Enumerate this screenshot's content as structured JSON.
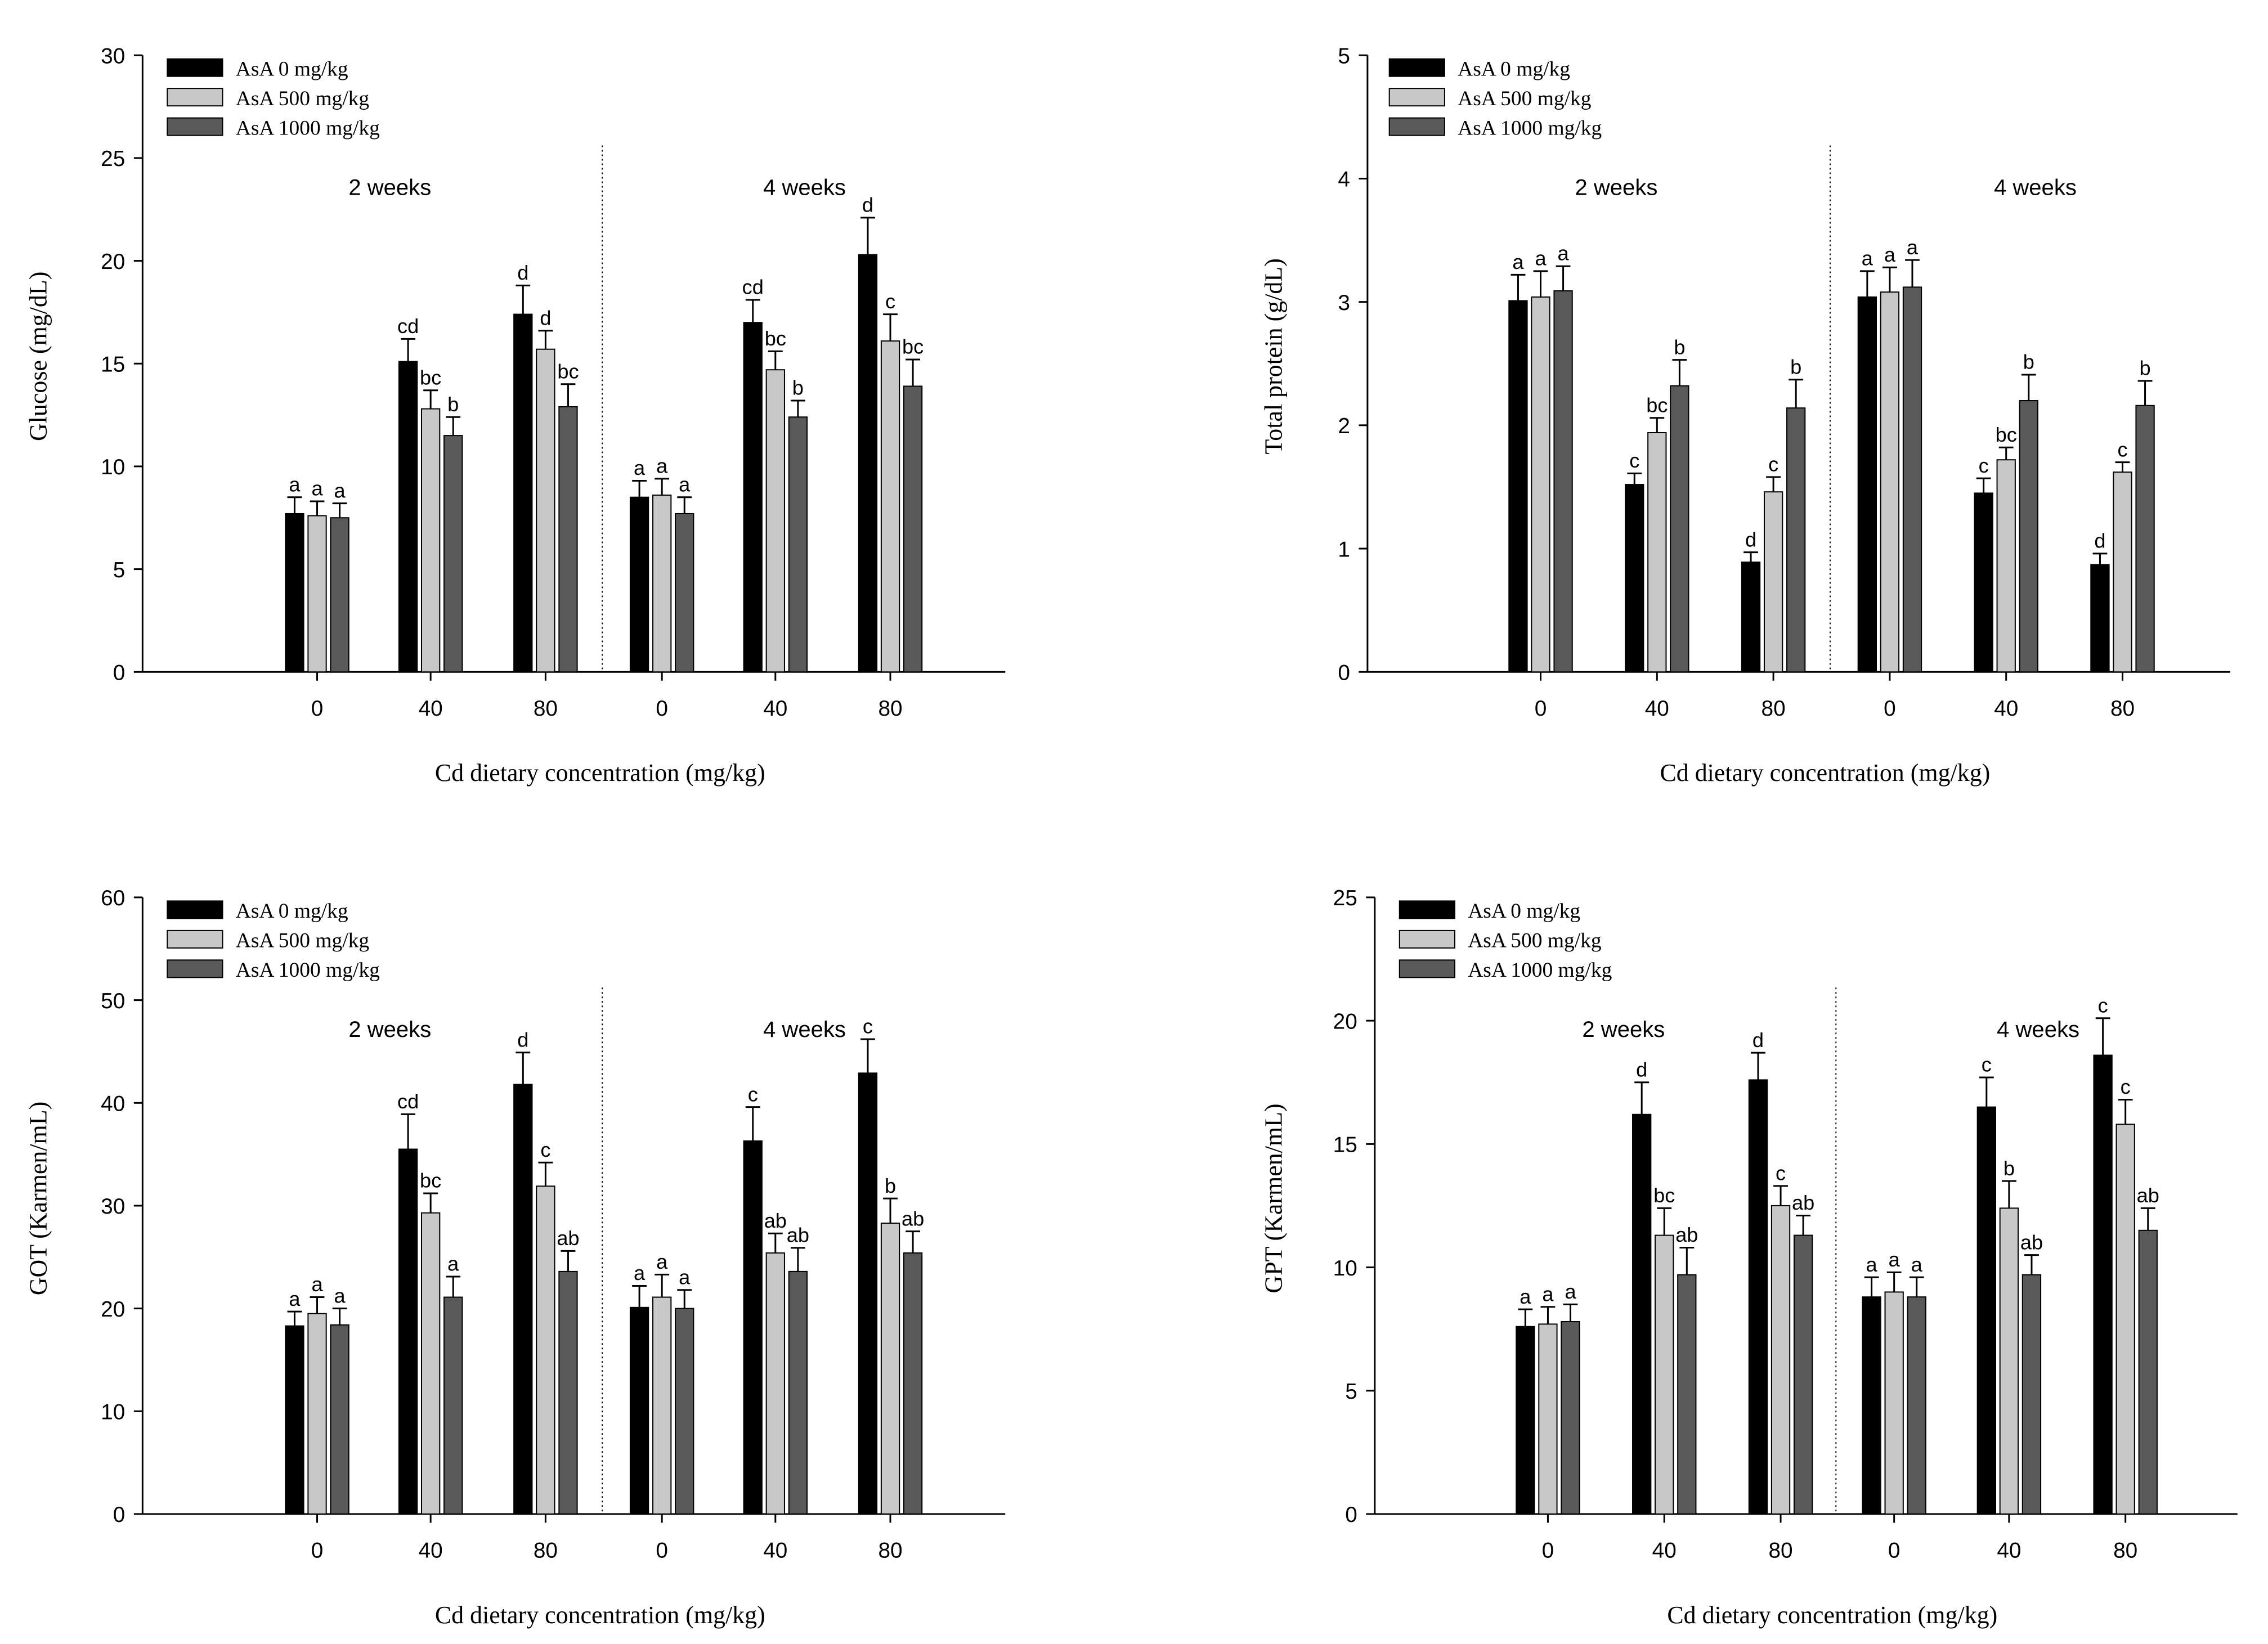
{
  "colors": {
    "AsA 0": "#000000",
    "AsA 500": "#c8c8c8",
    "AsA 1000": "#595959",
    "axis": "#000000"
  },
  "chart_data": [
    {
      "type": "bar",
      "ylabel": "Glucose (mg/dL)",
      "xlabel": "Cd dietary concentration (mg/kg)",
      "ylim": [
        0,
        30
      ],
      "yticks": [
        0,
        5,
        10,
        15,
        20,
        25,
        30
      ],
      "legend_placement": "top-left",
      "groups": [
        {
          "label": "2 weeks",
          "categories": [
            "0",
            "40",
            "80"
          ]
        },
        {
          "label": "4 weeks",
          "categories": [
            "0",
            "40",
            "80"
          ]
        }
      ],
      "series": [
        {
          "name": "AsA      0 mg/kg",
          "values": [
            7.7,
            15.1,
            17.4,
            8.5,
            17.0,
            20.3
          ],
          "errors": [
            0.8,
            1.1,
            1.4,
            0.8,
            1.1,
            1.8
          ],
          "letters": [
            "a",
            "cd",
            "d",
            "a",
            "cd",
            "d"
          ]
        },
        {
          "name": "AsA   500 mg/kg",
          "values": [
            7.6,
            12.8,
            15.7,
            8.6,
            14.7,
            16.1
          ],
          "errors": [
            0.7,
            0.9,
            0.9,
            0.8,
            0.9,
            1.3
          ],
          "letters": [
            "a",
            "bc",
            "d",
            "a",
            "bc",
            "c"
          ]
        },
        {
          "name": "AsA 1000 mg/kg",
          "values": [
            7.5,
            11.5,
            12.9,
            7.7,
            12.4,
            13.9
          ],
          "errors": [
            0.7,
            0.9,
            1.1,
            0.8,
            0.8,
            1.3
          ],
          "letters": [
            "a",
            "b",
            "bc",
            "a",
            "b",
            "bc"
          ]
        }
      ]
    },
    {
      "type": "bar",
      "ylabel": "Total protein (g/dL)",
      "xlabel": "Cd dietary concentration (mg/kg)",
      "ylim": [
        0,
        5
      ],
      "yticks": [
        0,
        1,
        2,
        3,
        4,
        5
      ],
      "legend_placement": "top-left",
      "groups": [
        {
          "label": "2 weeks",
          "categories": [
            "0",
            "40",
            "80"
          ]
        },
        {
          "label": "4 weeks",
          "categories": [
            "0",
            "40",
            "80"
          ]
        }
      ],
      "series": [
        {
          "name": "AsA      0 mg/kg",
          "values": [
            3.01,
            1.52,
            0.89,
            3.04,
            1.45,
            0.87
          ],
          "errors": [
            0.21,
            0.09,
            0.08,
            0.21,
            0.12,
            0.09
          ],
          "letters": [
            "a",
            "c",
            "d",
            "a",
            "c",
            "d"
          ]
        },
        {
          "name": "AsA   500 mg/kg",
          "values": [
            3.04,
            1.94,
            1.46,
            3.08,
            1.72,
            1.62
          ],
          "errors": [
            0.21,
            0.12,
            0.12,
            0.2,
            0.1,
            0.08
          ],
          "letters": [
            "a",
            "bc",
            "c",
            "a",
            "bc",
            "c"
          ]
        },
        {
          "name": "AsA 1000 mg/kg",
          "values": [
            3.09,
            2.32,
            2.14,
            3.12,
            2.2,
            2.16
          ],
          "errors": [
            0.2,
            0.21,
            0.23,
            0.22,
            0.21,
            0.2
          ],
          "letters": [
            "a",
            "b",
            "b",
            "a",
            "b",
            "b"
          ]
        }
      ]
    },
    {
      "type": "bar",
      "ylabel": "GOT (Karmen/mL)",
      "xlabel": "Cd dietary concentration (mg/kg)",
      "ylim": [
        0,
        60
      ],
      "yticks": [
        0,
        10,
        20,
        30,
        40,
        50,
        60
      ],
      "legend_placement": "top-left",
      "groups": [
        {
          "label": "2 weeks",
          "categories": [
            "0",
            "40",
            "80"
          ]
        },
        {
          "label": "4 weeks",
          "categories": [
            "0",
            "40",
            "80"
          ]
        }
      ],
      "series": [
        {
          "name": "AsA      0 mg/kg",
          "values": [
            18.3,
            35.5,
            41.8,
            20.1,
            36.3,
            42.9
          ],
          "errors": [
            1.4,
            3.4,
            3.1,
            2.1,
            3.3,
            3.3
          ],
          "letters": [
            "a",
            "cd",
            "d",
            "a",
            "c",
            "c"
          ]
        },
        {
          "name": "AsA   500 mg/kg",
          "values": [
            19.5,
            29.3,
            31.9,
            21.1,
            25.4,
            28.3
          ],
          "errors": [
            1.6,
            1.9,
            2.3,
            2.2,
            1.9,
            2.4
          ],
          "letters": [
            "a",
            "bc",
            "c",
            "a",
            "ab",
            "b"
          ]
        },
        {
          "name": "AsA 1000 mg/kg",
          "values": [
            18.4,
            21.1,
            23.6,
            20.0,
            23.6,
            25.4
          ],
          "errors": [
            1.6,
            2.0,
            2.0,
            1.8,
            2.3,
            2.1
          ],
          "letters": [
            "a",
            "a",
            "ab",
            "a",
            "ab",
            "ab"
          ]
        }
      ]
    },
    {
      "type": "bar",
      "ylabel": "GPT (Karmen/mL)",
      "xlabel": "Cd dietary concentration (mg/kg)",
      "ylim": [
        0,
        25
      ],
      "yticks": [
        0,
        5,
        10,
        15,
        20,
        25
      ],
      "legend_placement": "top-left",
      "groups": [
        {
          "label": "2 weeks",
          "categories": [
            "0",
            "40",
            "80"
          ]
        },
        {
          "label": "4 weeks",
          "categories": [
            "0",
            "40",
            "80"
          ]
        }
      ],
      "series": [
        {
          "name": "AsA      0 mg/kg",
          "values": [
            7.6,
            16.2,
            17.6,
            8.8,
            16.5,
            18.6
          ],
          "errors": [
            0.7,
            1.3,
            1.1,
            0.8,
            1.2,
            1.5
          ],
          "letters": [
            "a",
            "d",
            "d",
            "a",
            "c",
            "c"
          ]
        },
        {
          "name": "AsA   500 mg/kg",
          "values": [
            7.7,
            11.3,
            12.5,
            9.0,
            12.4,
            15.8
          ],
          "errors": [
            0.7,
            1.1,
            0.8,
            0.8,
            1.1,
            1.0
          ],
          "letters": [
            "a",
            "bc",
            "c",
            "a",
            "b",
            "c"
          ]
        },
        {
          "name": "AsA 1000 mg/kg",
          "values": [
            7.8,
            9.7,
            11.3,
            8.8,
            9.7,
            11.5
          ],
          "errors": [
            0.7,
            1.1,
            0.8,
            0.8,
            0.8,
            0.9
          ],
          "letters": [
            "a",
            "ab",
            "ab",
            "a",
            "ab",
            "ab"
          ]
        }
      ]
    }
  ]
}
